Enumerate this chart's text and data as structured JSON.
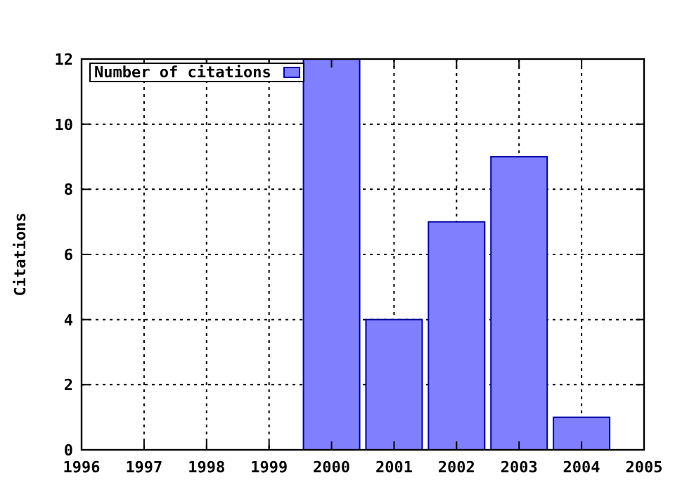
{
  "chart_data": {
    "type": "bar",
    "ylabel": "Citations",
    "x": [
      2000,
      2001,
      2002,
      2003,
      2004
    ],
    "series": [
      {
        "name": "Number of citations",
        "color": "#8080ff",
        "values": [
          12,
          4,
          7,
          9,
          1
        ]
      }
    ],
    "xlim": [
      1996,
      2005
    ],
    "xticks": [
      1996,
      1997,
      1998,
      1999,
      2000,
      2001,
      2002,
      2003,
      2004,
      2005
    ],
    "ylim": [
      0,
      12
    ],
    "yticks": [
      0,
      2,
      4,
      6,
      8,
      10,
      12
    ],
    "grid": true,
    "legend": "top left"
  }
}
